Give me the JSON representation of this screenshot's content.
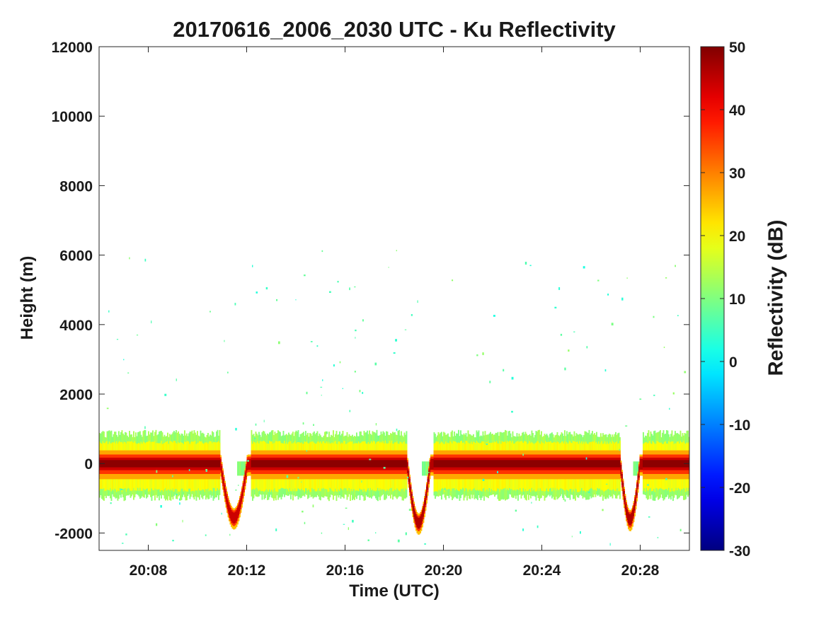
{
  "chart_data": {
    "type": "heatmap",
    "title": "20170616_2006_2030 UTC - Ku Reflectivity",
    "xlabel": "Time (UTC)",
    "ylabel": "Height (m)",
    "colorbar_label": "Reflectivity (dB)",
    "colormap": "jet",
    "x_range": [
      "20:06",
      "20:30"
    ],
    "x_ticks": [
      "20:08",
      "20:12",
      "20:16",
      "20:20",
      "20:24",
      "20:28"
    ],
    "ylim": [
      -2500,
      12000
    ],
    "y_ticks": [
      -2000,
      0,
      2000,
      4000,
      6000,
      8000,
      10000,
      12000
    ],
    "y_tick_labels": [
      "-2000",
      "0",
      "2000",
      "4000",
      "6000",
      "8000",
      "10000",
      "12000"
    ],
    "clim": [
      -30,
      50
    ],
    "colorbar_ticks": [
      -30,
      -20,
      -10,
      0,
      10,
      20,
      30,
      40,
      50
    ],
    "colorbar_tick_labels": [
      "-30",
      "-20",
      "-10",
      "0",
      "10",
      "20",
      "30",
      "40",
      "50"
    ],
    "surface_band": {
      "center_height_m": 0,
      "peak_dB": 50,
      "outer_extent_m": [
        -1000,
        900
      ]
    },
    "descent_events": [
      {
        "start": "20:10:55",
        "end": "20:12:10",
        "min_height_m": -1900,
        "peak_dB": 48
      },
      {
        "start": "20:18:30",
        "end": "20:19:35",
        "min_height_m": -2050,
        "peak_dB": 50
      },
      {
        "start": "20:27:10",
        "end": "20:28:05",
        "min_height_m": -1950,
        "peak_dB": 50
      }
    ],
    "grid": false
  }
}
